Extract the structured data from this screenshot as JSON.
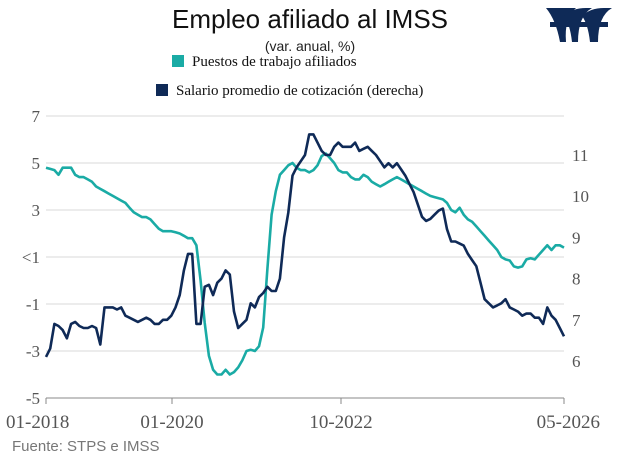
{
  "chart_data": {
    "type": "line",
    "title": "Empleo afiliado al IMSS",
    "subtitle": "(var. anual, %)",
    "x_tick_labels": [
      "01-2018",
      "01-2020",
      "10-2022",
      "05-2026"
    ],
    "y_left_ticks": [
      "7",
      "5",
      "3",
      "<1",
      "-1",
      "-3",
      "-5"
    ],
    "y_left_range": [
      -5,
      7
    ],
    "y_right_ticks": [
      "11",
      "10",
      "9",
      "8",
      "7",
      "6"
    ],
    "y_right_range": [
      6,
      11.5
    ],
    "legend_position": "top",
    "series": [
      {
        "name": "Puestos de trabajo afiliados",
        "axis": "left",
        "color": "#1aaba5",
        "values": [
          4.8,
          4.75,
          4.7,
          4.5,
          4.8,
          4.8,
          4.8,
          4.5,
          4.4,
          4.4,
          4.3,
          4.2,
          4.0,
          3.9,
          3.8,
          3.7,
          3.6,
          3.5,
          3.4,
          3.3,
          3.1,
          2.9,
          2.8,
          2.7,
          2.7,
          2.6,
          2.4,
          2.2,
          2.1,
          2.1,
          2.1,
          2.05,
          2.0,
          1.9,
          1.8,
          1.8,
          1.5,
          0.0,
          -1.8,
          -3.2,
          -3.8,
          -4.0,
          -4.0,
          -3.8,
          -4.0,
          -3.9,
          -3.7,
          -3.4,
          -3.0,
          -2.95,
          -3.0,
          -2.8,
          -2.0,
          0.5,
          2.8,
          3.8,
          4.5,
          4.7,
          4.9,
          5.0,
          4.8,
          4.7,
          4.7,
          4.6,
          4.7,
          4.9,
          5.3,
          5.4,
          5.2,
          5.0,
          4.7,
          4.6,
          4.6,
          4.4,
          4.3,
          4.3,
          4.5,
          4.4,
          4.2,
          4.1,
          4.0,
          4.1,
          4.2,
          4.3,
          4.4,
          4.3,
          4.2,
          4.1,
          4.0,
          3.9,
          3.8,
          3.7,
          3.6,
          3.55,
          3.5,
          3.45,
          3.3,
          3.0,
          2.9,
          3.1,
          2.8,
          2.6,
          2.5,
          2.3,
          2.1,
          1.9,
          1.7,
          1.5,
          1.3,
          1.0,
          0.9,
          0.85,
          0.6,
          0.55,
          0.6,
          0.9,
          0.95,
          0.9,
          1.1,
          1.3,
          1.5,
          1.3,
          1.5,
          1.5,
          1.4
        ]
      },
      {
        "name": "Salario promedio de cotización (derecha)",
        "axis": "right",
        "color": "#0f2a57",
        "values": [
          6.1,
          6.3,
          6.9,
          6.85,
          6.75,
          6.55,
          6.9,
          6.95,
          6.85,
          6.8,
          6.8,
          6.85,
          6.8,
          6.4,
          7.3,
          7.3,
          7.3,
          7.25,
          7.3,
          7.1,
          7.05,
          7.0,
          6.95,
          7.0,
          7.05,
          7.0,
          6.9,
          6.9,
          7.0,
          7.0,
          7.1,
          7.3,
          7.6,
          8.2,
          8.6,
          8.6,
          6.9,
          6.9,
          7.8,
          7.85,
          7.6,
          7.9,
          8.0,
          8.2,
          8.1,
          7.2,
          6.8,
          6.9,
          7.0,
          7.4,
          7.3,
          7.55,
          7.65,
          7.8,
          7.7,
          7.7,
          8.0,
          9.0,
          9.6,
          10.5,
          10.7,
          10.85,
          11.0,
          11.5,
          11.5,
          11.3,
          11.1,
          11.0,
          11.0,
          11.2,
          11.3,
          11.2,
          11.2,
          11.2,
          11.3,
          11.1,
          11.15,
          11.2,
          11.1,
          11.0,
          10.85,
          10.7,
          10.8,
          10.7,
          10.8,
          10.65,
          10.5,
          10.3,
          10.1,
          9.8,
          9.5,
          9.4,
          9.45,
          9.55,
          9.65,
          9.7,
          9.2,
          8.9,
          8.9,
          8.85,
          8.8,
          8.6,
          8.45,
          8.3,
          7.9,
          7.5,
          7.4,
          7.3,
          7.35,
          7.4,
          7.5,
          7.3,
          7.25,
          7.2,
          7.1,
          7.15,
          7.15,
          7.05,
          7.05,
          6.9,
          7.3,
          7.1,
          7.0,
          6.8,
          6.6
        ]
      }
    ]
  },
  "logo": {
    "name": "imss-logo",
    "color": "#0f2a57"
  },
  "footer": {
    "source": "Fuente: STPS e IMSS"
  }
}
